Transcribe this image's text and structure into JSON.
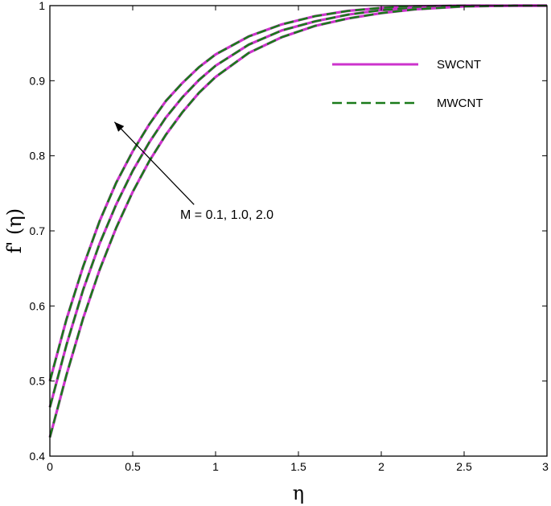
{
  "chart_data": {
    "type": "line",
    "xlabel": "η",
    "ylabel": "f' (η)",
    "xlim": [
      0,
      3
    ],
    "ylim": [
      0.4,
      1
    ],
    "xticks": [
      "0",
      "0.5",
      "1",
      "1.5",
      "2",
      "2.5",
      "3"
    ],
    "yticks": [
      "0.4",
      "0.5",
      "0.6",
      "0.7",
      "0.8",
      "0.9",
      "1"
    ],
    "grid": false,
    "legend_position": "top-right",
    "legend": [
      {
        "label": "SWCNT",
        "color": "#cc33cc",
        "style": "solid"
      },
      {
        "label": "MWCNT",
        "color": "#1a7a1a",
        "style": "dashed"
      }
    ],
    "annotation": {
      "text": "M = 0.1, 1.0, 2.0",
      "arrow_from": [
        0.87,
        0.735
      ],
      "arrow_to": [
        0.39,
        0.845
      ]
    },
    "x": [
      0,
      0.1,
      0.2,
      0.3,
      0.4,
      0.5,
      0.6,
      0.7,
      0.8,
      0.9,
      1.0,
      1.2,
      1.4,
      1.6,
      1.8,
      2.0,
      2.2,
      2.5,
      2.8,
      3.0
    ],
    "series": [
      {
        "M": "0.1",
        "fluid": "SWCNT",
        "values": [
          0.5,
          0.582,
          0.652,
          0.713,
          0.764,
          0.806,
          0.842,
          0.873,
          0.897,
          0.918,
          0.935,
          0.959,
          0.975,
          0.986,
          0.993,
          0.997,
          0.999,
          1.0,
          1.0,
          1.0
        ]
      },
      {
        "M": "0.1",
        "fluid": "MWCNT",
        "values": [
          0.5,
          0.582,
          0.652,
          0.713,
          0.764,
          0.806,
          0.842,
          0.873,
          0.897,
          0.918,
          0.935,
          0.959,
          0.975,
          0.986,
          0.993,
          0.997,
          0.999,
          1.0,
          1.0,
          1.0
        ]
      },
      {
        "M": "1.0",
        "fluid": "SWCNT",
        "values": [
          0.465,
          0.548,
          0.621,
          0.683,
          0.735,
          0.78,
          0.818,
          0.851,
          0.878,
          0.901,
          0.92,
          0.948,
          0.967,
          0.979,
          0.988,
          0.994,
          0.997,
          0.999,
          1.0,
          1.0
        ]
      },
      {
        "M": "1.0",
        "fluid": "MWCNT",
        "values": [
          0.465,
          0.548,
          0.621,
          0.683,
          0.735,
          0.78,
          0.818,
          0.851,
          0.878,
          0.901,
          0.92,
          0.948,
          0.967,
          0.979,
          0.988,
          0.994,
          0.997,
          0.999,
          1.0,
          1.0
        ]
      },
      {
        "M": "2.0",
        "fluid": "SWCNT",
        "values": [
          0.425,
          0.508,
          0.583,
          0.648,
          0.704,
          0.752,
          0.793,
          0.828,
          0.858,
          0.884,
          0.905,
          0.937,
          0.958,
          0.973,
          0.983,
          0.99,
          0.995,
          0.999,
          1.0,
          1.0
        ]
      },
      {
        "M": "2.0",
        "fluid": "MWCNT",
        "values": [
          0.425,
          0.508,
          0.583,
          0.648,
          0.704,
          0.752,
          0.793,
          0.828,
          0.858,
          0.884,
          0.905,
          0.937,
          0.958,
          0.973,
          0.983,
          0.99,
          0.995,
          0.999,
          1.0,
          1.0
        ]
      }
    ]
  }
}
